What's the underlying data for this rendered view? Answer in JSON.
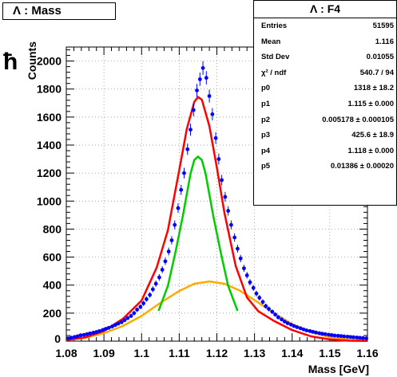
{
  "pad": {
    "title": "Λ : Mass",
    "side_mark": "ħ"
  },
  "stats": {
    "title": "Λ : F4",
    "rows": [
      {
        "key": "Entries",
        "value": "51595"
      },
      {
        "key": "Mean",
        "value": "1.116"
      },
      {
        "key": "Std Dev",
        "value": "0.01055"
      },
      {
        "key": "χ² / ndf",
        "value": "540.7 / 94"
      },
      {
        "key": "p0",
        "value": "1318 ± 18.2"
      },
      {
        "key": "p1",
        "value": "1.115 ± 0.000"
      },
      {
        "key": "p2",
        "value": "0.005178 ± 0.000105"
      },
      {
        "key": "p3",
        "value": "425.6 ± 18.9"
      },
      {
        "key": "p4",
        "value": "1.118 ± 0.000"
      },
      {
        "key": "p5",
        "value": "0.01386 ± 0.00020"
      }
    ]
  },
  "chart_data": {
    "type": "scatter",
    "title": "Λ : Mass",
    "xlabel": "Mass [GeV]",
    "ylabel": "Counts",
    "xlim": [
      1.08,
      1.16
    ],
    "ylim": [
      0,
      2100
    ],
    "xticks": [
      1.08,
      1.09,
      1.1,
      1.11,
      1.12,
      1.13,
      1.14,
      1.15,
      1.16
    ],
    "xtick_labels": [
      "1.08",
      "1.09",
      "1.1",
      "1.11",
      "1.12",
      "1.13",
      "1.14",
      "1.15",
      "1.16"
    ],
    "yticks": [
      200,
      400,
      600,
      800,
      1000,
      1200,
      1400,
      1600,
      1800,
      2000
    ],
    "ytick_labels": [
      "200",
      "400",
      "600",
      "800",
      "1000",
      "1200",
      "1400",
      "1600",
      "1800",
      "2000"
    ],
    "grid": true,
    "series": [
      {
        "style": "points with error bars",
        "color": "#0000ff",
        "x": [
          1.0805,
          1.0813,
          1.0822,
          1.083,
          1.0838,
          1.0847,
          1.0855,
          1.0863,
          1.0872,
          1.088,
          1.0888,
          1.0897,
          1.0905,
          1.0913,
          1.0922,
          1.093,
          1.0938,
          1.0947,
          1.0955,
          1.0963,
          1.0972,
          1.098,
          1.0988,
          1.0997,
          1.1005,
          1.1013,
          1.1022,
          1.103,
          1.1038,
          1.1047,
          1.1055,
          1.1063,
          1.1072,
          1.108,
          1.1088,
          1.1097,
          1.1105,
          1.1113,
          1.1122,
          1.113,
          1.1138,
          1.1147,
          1.1155,
          1.1163,
          1.1172,
          1.118,
          1.1188,
          1.1197,
          1.1205,
          1.1213,
          1.1222,
          1.123,
          1.1238,
          1.1247,
          1.1255,
          1.1263,
          1.1272,
          1.128,
          1.1288,
          1.1297,
          1.1305,
          1.1313,
          1.1322,
          1.133,
          1.1338,
          1.1347,
          1.1355,
          1.1363,
          1.1372,
          1.138,
          1.1388,
          1.1397,
          1.1405,
          1.1413,
          1.1422,
          1.143,
          1.1438,
          1.1447,
          1.1455,
          1.1463,
          1.1472,
          1.148,
          1.1488,
          1.1497,
          1.1505,
          1.1513,
          1.1522,
          1.153,
          1.1538,
          1.1547,
          1.1555,
          1.1563,
          1.1572,
          1.158,
          1.1588,
          1.1597
        ],
        "y": [
          20,
          25,
          30,
          35,
          42,
          45,
          50,
          55,
          60,
          65,
          72,
          80,
          88,
          95,
          105,
          115,
          125,
          135,
          150,
          165,
          180,
          200,
          225,
          245,
          270,
          300,
          330,
          370,
          410,
          455,
          510,
          570,
          640,
          720,
          830,
          950,
          1080,
          1200,
          1370,
          1510,
          1650,
          1790,
          1870,
          1950,
          1880,
          1750,
          1620,
          1450,
          1300,
          1150,
          1030,
          930,
          830,
          740,
          660,
          590,
          520,
          470,
          420,
          380,
          340,
          310,
          280,
          250,
          230,
          210,
          190,
          170,
          155,
          140,
          128,
          118,
          108,
          100,
          92,
          84,
          77,
          72,
          67,
          62,
          57,
          53,
          50,
          46,
          43,
          40,
          38,
          36,
          34,
          32,
          30,
          28,
          26,
          24,
          22,
          20
        ]
      }
    ],
    "fits": [
      {
        "name": "total",
        "color": "#ff0000",
        "style": "sum of two gaussians",
        "x": [
          1.08,
          1.085,
          1.09,
          1.095,
          1.1,
          1.104,
          1.107,
          1.11,
          1.112,
          1.114,
          1.115,
          1.116,
          1.118,
          1.12,
          1.122,
          1.125,
          1.128,
          1.131,
          1.135,
          1.14,
          1.145,
          1.15,
          1.155,
          1.16
        ],
        "y": [
          8,
          27,
          72,
          159,
          290,
          525,
          792,
          1222,
          1513,
          1708,
          1743,
          1724,
          1536,
          1239,
          918,
          536,
          312,
          214,
          147,
          79,
          34,
          12,
          3,
          1
        ]
      },
      {
        "name": "signal",
        "color": "#00cc00",
        "style": "gaussian",
        "x": [
          1.1045,
          1.107,
          1.109,
          1.111,
          1.113,
          1.114,
          1.115,
          1.116,
          1.117,
          1.119,
          1.121,
          1.123,
          1.1255
        ],
        "y": [
          216,
          395,
          637,
          900,
          1195,
          1293,
          1318,
          1293,
          1195,
          900,
          637,
          395,
          216
        ]
      },
      {
        "name": "background",
        "color": "#ffaa00",
        "style": "gaussian",
        "x": [
          1.08,
          1.085,
          1.09,
          1.095,
          1.1,
          1.105,
          1.11,
          1.114,
          1.118,
          1.122,
          1.126,
          1.13,
          1.135,
          1.14,
          1.145,
          1.15,
          1.155,
          1.16
        ],
        "y": [
          8,
          24,
          57,
          108,
          180,
          273,
          358,
          410,
          426,
          410,
          362,
          293,
          203,
          121,
          62,
          28,
          11,
          4
        ]
      }
    ]
  }
}
